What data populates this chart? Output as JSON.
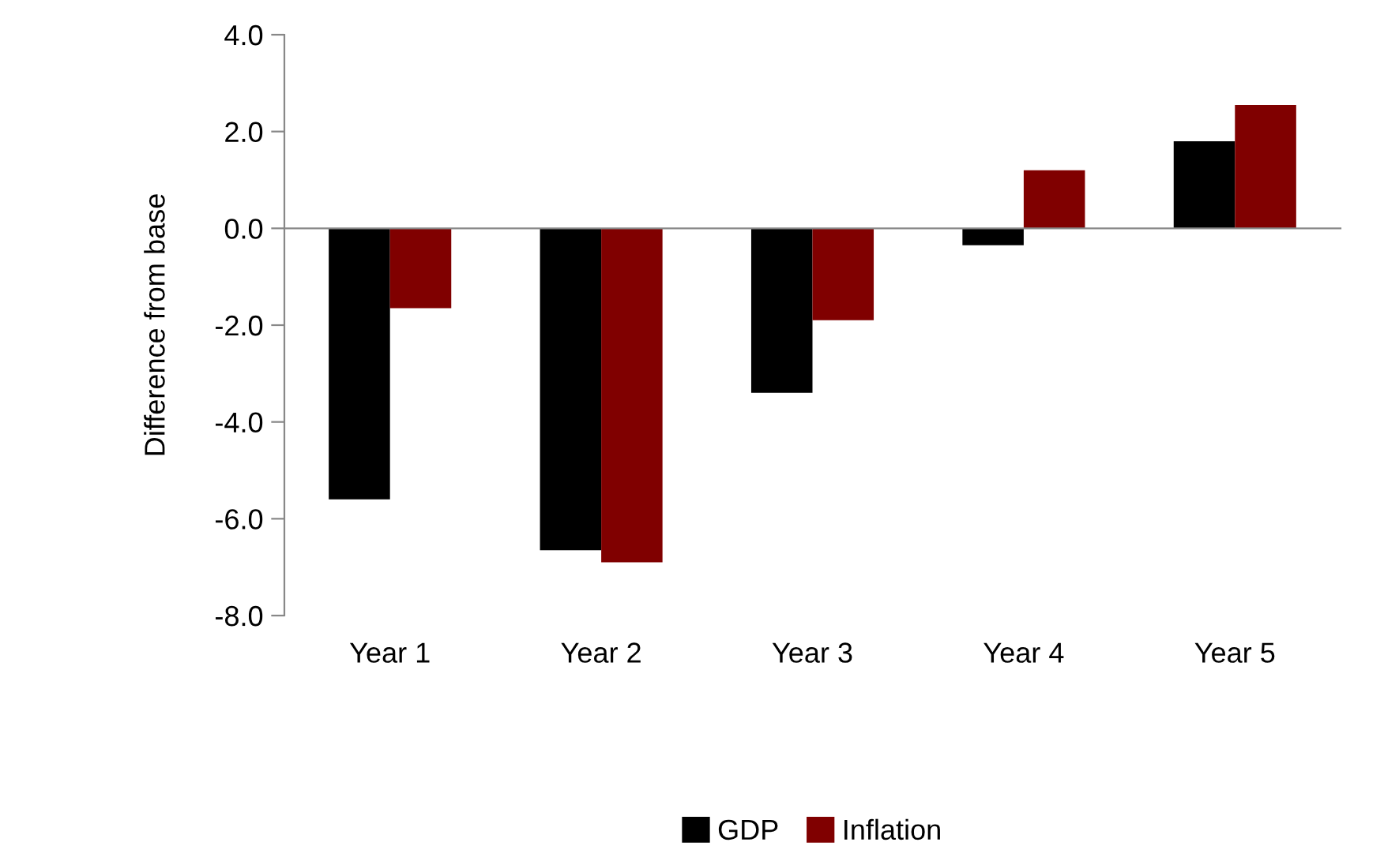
{
  "chart_data": {
    "type": "bar",
    "ylabel": "Difference from base",
    "categories": [
      "Year 1",
      "Year 2",
      "Year 3",
      "Year 4",
      "Year 5"
    ],
    "series": [
      {
        "name": "GDP",
        "color": "#000000",
        "values": [
          -5.6,
          -6.65,
          -3.4,
          -0.35,
          1.8
        ]
      },
      {
        "name": "Inflation",
        "color": "#800000",
        "values": [
          -1.65,
          -6.9,
          -1.9,
          1.2,
          2.55
        ]
      }
    ],
    "ylim": [
      -8,
      4
    ],
    "yticks": [
      {
        "value": -8,
        "label": "-8.0"
      },
      {
        "value": -6,
        "label": "-6.0"
      },
      {
        "value": -4,
        "label": "-4.0"
      },
      {
        "value": -2,
        "label": "-2.0"
      },
      {
        "value": 0,
        "label": "0.0"
      },
      {
        "value": 2,
        "label": "2.0"
      },
      {
        "value": 4,
        "label": "4.0"
      }
    ],
    "legend": "bottom"
  }
}
